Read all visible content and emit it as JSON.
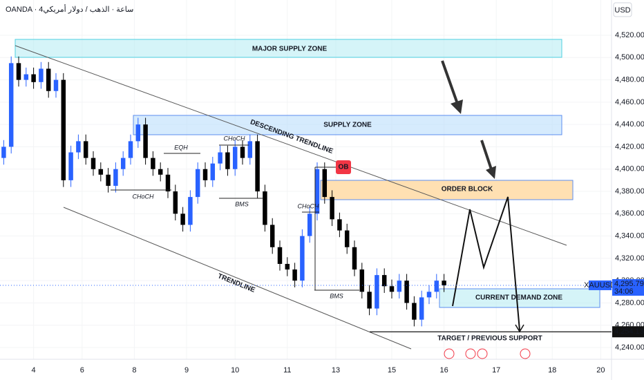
{
  "chart_data": {
    "type": "candlestick",
    "title": "OANDA · 4ساعة · الذهب / دولار أمريكي",
    "y_axis_unit": "USD",
    "symbol": "XAUUSD",
    "countdown": "34:06",
    "up_color": "#2962ff",
    "down_color": "#000000",
    "x": [
      0.5,
      1.5,
      2.5,
      3.5,
      4.5,
      5.5,
      6.5,
      7.5,
      8.5,
      9.5,
      10.5,
      11.5,
      12.5,
      13.5,
      14.5,
      15.5,
      16.5,
      17.5,
      18.5,
      19.5,
      20.5,
      21.5,
      22.5,
      23.5,
      24.5,
      25.5,
      26.5,
      27.5,
      28.5,
      29.5,
      30.5,
      31.5,
      32.5,
      33.5,
      34.5,
      35.5,
      36.5,
      37.5,
      38.5,
      39.5,
      40.5,
      41.5,
      42.5,
      43.5,
      44.5,
      45.5,
      46.5,
      47.5,
      48.5,
      49.5,
      50.5,
      51.5,
      52.5,
      53.5,
      54.5,
      55.5,
      56.5,
      57.5,
      58.5,
      59.5
    ],
    "open": [
      4410,
      4420,
      4495,
      4480,
      4485,
      4478,
      4490,
      4470,
      4480,
      4390,
      4415,
      4425,
      4410,
      4400,
      4395,
      4385,
      4400,
      4410,
      4425,
      4440,
      4410,
      4400,
      4395,
      4380,
      4360,
      4350,
      4375,
      4400,
      4390,
      4405,
      4415,
      4400,
      4420,
      4410,
      4425,
      4380,
      4350,
      4330,
      4315,
      4310,
      4300,
      4340,
      4360,
      4400,
      4375,
      4355,
      4345,
      4330,
      4310,
      4290,
      4275,
      4305,
      4295,
      4290,
      4300,
      4280,
      4265,
      4285,
      4290,
      4300
    ],
    "high": [
      4426,
      4501,
      4501,
      4491,
      4491,
      4496,
      4496,
      4486,
      4486,
      4421,
      4431,
      4431,
      4416,
      4406,
      4401,
      4406,
      4416,
      4431,
      4446,
      4446,
      4416,
      4406,
      4401,
      4386,
      4366,
      4381,
      4406,
      4406,
      4411,
      4421,
      4421,
      4426,
      4426,
      4431,
      4431,
      4386,
      4356,
      4336,
      4321,
      4316,
      4346,
      4366,
      4406,
      4406,
      4381,
      4361,
      4351,
      4336,
      4316,
      4296,
      4311,
      4311,
      4301,
      4306,
      4306,
      4286,
      4291,
      4296,
      4306,
      4306
    ],
    "low": [
      4404,
      4414,
      4474,
      4474,
      4472,
      4472,
      4464,
      4464,
      4384,
      4384,
      4409,
      4404,
      4394,
      4389,
      4379,
      4379,
      4394,
      4404,
      4419,
      4404,
      4394,
      4389,
      4374,
      4354,
      4344,
      4344,
      4369,
      4384,
      4384,
      4399,
      4394,
      4394,
      4404,
      4404,
      4374,
      4344,
      4324,
      4309,
      4304,
      4294,
      4294,
      4334,
      4354,
      4369,
      4349,
      4339,
      4324,
      4304,
      4284,
      4269,
      4269,
      4289,
      4284,
      4284,
      4274,
      4259,
      4259,
      4279,
      4284,
      4289.79
    ],
    "close": [
      4420,
      4495,
      4480,
      4485,
      4478,
      4490,
      4470,
      4480,
      4390,
      4415,
      4425,
      4410,
      4400,
      4395,
      4385,
      4400,
      4410,
      4425,
      4440,
      4410,
      4400,
      4395,
      4380,
      4360,
      4350,
      4375,
      4400,
      4390,
      4405,
      4415,
      4400,
      4420,
      4410,
      4425,
      4380,
      4350,
      4330,
      4315,
      4310,
      4300,
      4340,
      4360,
      4400,
      4375,
      4355,
      4345,
      4330,
      4310,
      4290,
      4275,
      4305,
      4295,
      4290,
      4300,
      4280,
      4265,
      4285,
      4290,
      4300,
      4295.79
    ],
    "xlim": [
      0,
      82
    ],
    "xticks": [
      {
        "value": 4.5,
        "label": "4"
      },
      {
        "value": 11,
        "label": "6"
      },
      {
        "value": 18,
        "label": "8"
      },
      {
        "value": 25,
        "label": "9"
      },
      {
        "value": 31.5,
        "label": "10"
      },
      {
        "value": 38.5,
        "label": "11"
      },
      {
        "value": 45,
        "label": "13"
      },
      {
        "value": 52.5,
        "label": "15"
      },
      {
        "value": 59.5,
        "label": "16"
      },
      {
        "value": 66.5,
        "label": "17"
      },
      {
        "value": 74,
        "label": "18"
      },
      {
        "value": 80.5,
        "label": "20"
      }
    ],
    "ylim": [
      4229.5,
      4551.6
    ],
    "yticks": [
      {
        "value": 4240,
        "label": "4,240.000"
      },
      {
        "value": 4260,
        "label": "4,260.000"
      },
      {
        "value": 4280,
        "label": "4,280.000"
      },
      {
        "value": 4300,
        "label": "4,300.000"
      },
      {
        "value": 4320,
        "label": "4,320.000"
      },
      {
        "value": 4340,
        "label": "4,340.000"
      },
      {
        "value": 4360,
        "label": "4,360.000"
      },
      {
        "value": 4380,
        "label": "4,380.000"
      },
      {
        "value": 4400,
        "label": "4,400.000"
      },
      {
        "value": 4420,
        "label": "4,420.000"
      },
      {
        "value": 4440,
        "label": "4,440.000"
      },
      {
        "value": 4460,
        "label": "4,460.000"
      },
      {
        "value": 4480,
        "label": "4,480.000"
      },
      {
        "value": 4500,
        "label": "4,500.000"
      },
      {
        "value": 4520,
        "label": "4,520.000"
      }
    ],
    "current_price": {
      "value": 4295.79,
      "label": "4,295.790"
    },
    "target_price": {
      "value": 4254.13,
      "label": "4,254.130"
    },
    "annotations": {
      "major_supply": "MAJOR SUPPLY ZONE",
      "supply": "SUPPLY ZONE",
      "order_block": "ORDER BLOCK",
      "demand": "CURRENT DEMAND ZONE",
      "descending": "DESCENDING TRENDLINE",
      "trendline": "TRENDLINE",
      "eqh": "EQH",
      "choch1": "CHoCH",
      "choch2": "CHoCH",
      "choch3": "CHoCH",
      "bms1": "BMS",
      "bms2": "BMS",
      "ob": "OB",
      "target": "TARGET / PREVIOUS SUPPORT"
    }
  }
}
